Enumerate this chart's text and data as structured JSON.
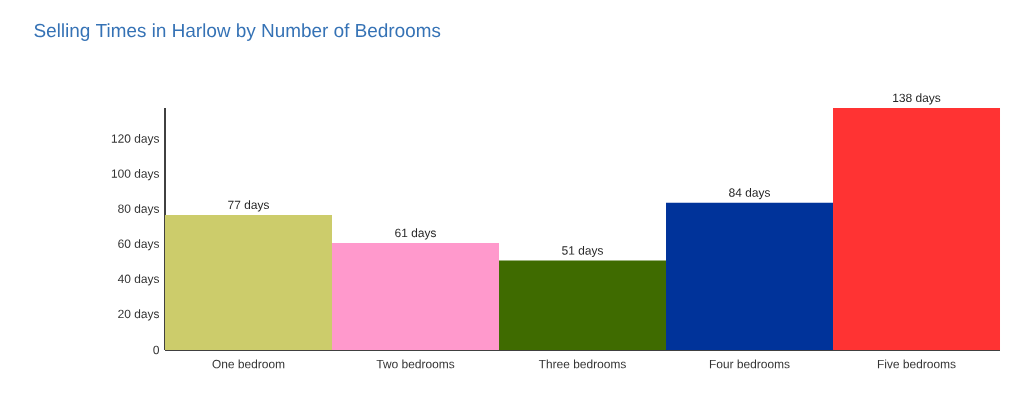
{
  "chart_data": {
    "type": "bar",
    "title": "Selling Times in Harlow by Number of Bedrooms",
    "categories": [
      "One bedroom",
      "Two bedrooms",
      "Three bedrooms",
      "Four bedrooms",
      "Five bedrooms"
    ],
    "values": [
      77,
      61,
      51,
      84,
      138
    ],
    "colors": [
      "#cccc6b",
      "#ff99cc",
      "#3f6b00",
      "#00339a",
      "#ff3333"
    ],
    "value_labels": [
      "77 days",
      "61 days",
      "51 days",
      "84 days",
      "138 days"
    ],
    "ylim": [
      0,
      138
    ],
    "yticks": [
      0,
      {
        "value": 20,
        "label": "20 days"
      },
      {
        "value": 40,
        "label": "40 days"
      },
      {
        "value": 60,
        "label": "60 days"
      },
      {
        "value": 80,
        "label": "80 days"
      },
      {
        "value": 100,
        "label": "100 days"
      },
      {
        "value": 120,
        "label": "120 days"
      }
    ],
    "grid": false
  }
}
